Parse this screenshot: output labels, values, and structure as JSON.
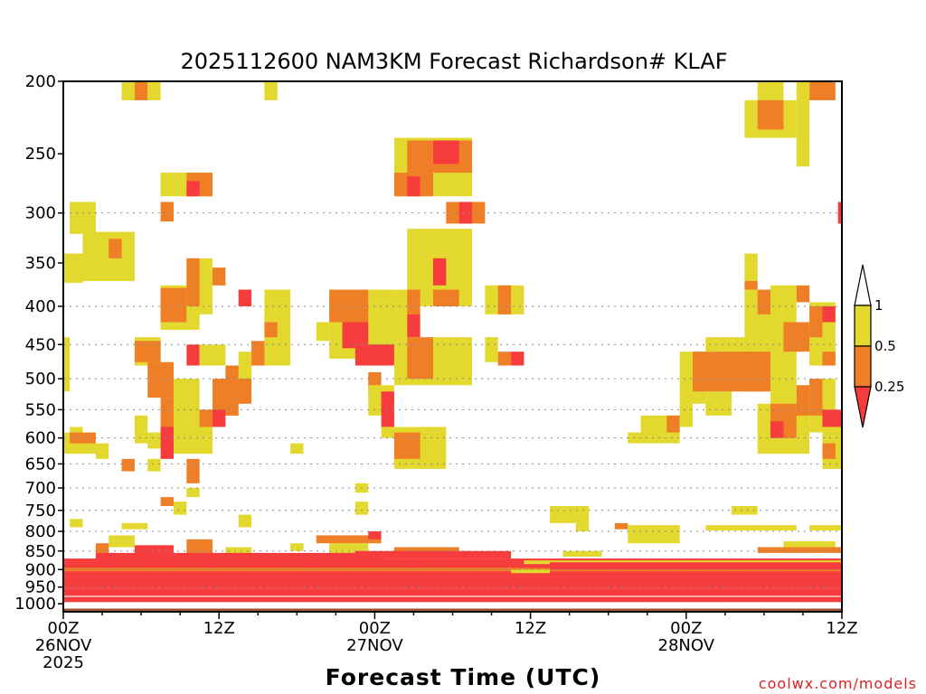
{
  "chart_data": {
    "type": "heatmap",
    "title": "2025112600 NAM3KM Forecast Richardson# KLAF",
    "xlabel": "Forecast Time (UTC)",
    "ylabel": "",
    "y_scale": "log-pressure",
    "ylim": [
      1025,
      200
    ],
    "y_ticks": [
      200,
      250,
      300,
      350,
      400,
      450,
      500,
      550,
      600,
      650,
      700,
      750,
      800,
      850,
      900,
      950,
      1000
    ],
    "y_tick_labels": [
      "200",
      "250",
      "300",
      "350",
      "400",
      "450",
      "500",
      "550",
      "600",
      "650",
      "700",
      "750",
      "800",
      "850",
      "900",
      "950",
      "1000"
    ],
    "xlim": [
      0,
      60
    ],
    "x_ticks": [
      {
        "hour": 0,
        "label": "00Z",
        "sub1": "26NOV",
        "sub2": "2025"
      },
      {
        "hour": 12,
        "label": "12Z",
        "sub1": "",
        "sub2": ""
      },
      {
        "hour": 24,
        "label": "00Z",
        "sub1": "27NOV",
        "sub2": ""
      },
      {
        "hour": 36,
        "label": "12Z",
        "sub1": "",
        "sub2": ""
      },
      {
        "hour": 48,
        "label": "00Z",
        "sub1": "28NOV",
        "sub2": ""
      },
      {
        "hour": 60,
        "label": "12Z",
        "sub1": "",
        "sub2": ""
      }
    ],
    "dotted_gridlines": [
      300,
      400,
      450,
      500,
      550,
      600,
      650,
      700,
      750,
      800,
      850,
      900,
      950
    ],
    "colorbar": {
      "position": "right",
      "levels": [
        {
          "label": "0.25",
          "value": 0.25
        },
        {
          "label": "0.5",
          "value": 0.5
        },
        {
          "label": "1",
          "value": 1
        }
      ],
      "bins": [
        {
          "range": "<0.25",
          "color": "#f63c3c"
        },
        {
          "range": "0.25-0.5",
          "color": "#ee7f26"
        },
        {
          "range": "0.5-1",
          "color": "#e2d82e"
        },
        {
          "range": ">1",
          "color": "#ffffff"
        }
      ]
    },
    "ground_color": "#9c5530",
    "surface_pressure": 1015,
    "regions": [
      {
        "cat": "y",
        "h0": 4.5,
        "h1": 5.5,
        "p0": 200,
        "p1": 212
      },
      {
        "cat": "o",
        "h0": 5.5,
        "h1": 6.5,
        "p0": 200,
        "p1": 212
      },
      {
        "cat": "y",
        "h0": 6.5,
        "h1": 7.5,
        "p0": 200,
        "p1": 212
      },
      {
        "cat": "y",
        "h0": 15.5,
        "h1": 16.5,
        "p0": 200,
        "p1": 212
      },
      {
        "cat": "y",
        "h0": 53.5,
        "h1": 55.5,
        "p0": 200,
        "p1": 212
      },
      {
        "cat": "y",
        "h0": 56.5,
        "h1": 57.5,
        "p0": 200,
        "p1": 260
      },
      {
        "cat": "o",
        "h0": 57.5,
        "h1": 59.5,
        "p0": 200,
        "p1": 212
      },
      {
        "cat": "y",
        "h0": 52.5,
        "h1": 56.5,
        "p0": 212,
        "p1": 238
      },
      {
        "cat": "o",
        "h0": 53.5,
        "h1": 55.5,
        "p0": 212,
        "p1": 232
      },
      {
        "cat": "y",
        "h0": 7.5,
        "h1": 11.5,
        "p0": 265,
        "p1": 285
      },
      {
        "cat": "o",
        "h0": 9.5,
        "h1": 11.5,
        "p0": 265,
        "p1": 285
      },
      {
        "cat": "r",
        "h0": 9.5,
        "h1": 10.5,
        "p0": 272,
        "p1": 285
      },
      {
        "cat": "o",
        "h0": 7.5,
        "h1": 8.5,
        "p0": 290,
        "p1": 308
      },
      {
        "cat": "y",
        "h0": 0.5,
        "h1": 2.5,
        "p0": 290,
        "p1": 320
      },
      {
        "cat": "y",
        "h0": 1.5,
        "h1": 5.5,
        "p0": 318,
        "p1": 370
      },
      {
        "cat": "o",
        "h0": 3.5,
        "h1": 4.5,
        "p0": 325,
        "p1": 345
      },
      {
        "cat": "y",
        "h0": -0.1,
        "h1": 1.5,
        "p0": 340,
        "p1": 372
      },
      {
        "cat": "y",
        "h0": 25.5,
        "h1": 31.5,
        "p0": 238,
        "p1": 285
      },
      {
        "cat": "o",
        "h0": 26.5,
        "h1": 31.5,
        "p0": 240,
        "p1": 265
      },
      {
        "cat": "r",
        "h0": 28.5,
        "h1": 30.5,
        "p0": 240,
        "p1": 258
      },
      {
        "cat": "o",
        "h0": 25.5,
        "h1": 28.5,
        "p0": 265,
        "p1": 285
      },
      {
        "cat": "r",
        "h0": 26.5,
        "h1": 27.5,
        "p0": 268,
        "p1": 285
      },
      {
        "cat": "o",
        "h0": 29.5,
        "h1": 32.5,
        "p0": 290,
        "p1": 310
      },
      {
        "cat": "r",
        "h0": 30.5,
        "h1": 31.5,
        "p0": 290,
        "p1": 310
      },
      {
        "cat": "y",
        "h0": 26.5,
        "h1": 31.5,
        "p0": 315,
        "p1": 400
      },
      {
        "cat": "r",
        "h0": 28.5,
        "h1": 29.5,
        "p0": 345,
        "p1": 375
      },
      {
        "cat": "o",
        "h0": 28.5,
        "h1": 30.5,
        "p0": 380,
        "p1": 400
      },
      {
        "cat": "y",
        "h0": 32.5,
        "h1": 35.5,
        "p0": 375,
        "p1": 410
      },
      {
        "cat": "o",
        "h0": 33.5,
        "h1": 34.5,
        "p0": 375,
        "p1": 410
      },
      {
        "cat": "y",
        "h0": 7.5,
        "h1": 10.5,
        "p0": 375,
        "p1": 430
      },
      {
        "cat": "o",
        "h0": 7.5,
        "h1": 9.5,
        "p0": 378,
        "p1": 420
      },
      {
        "cat": "y",
        "h0": 9.5,
        "h1": 11.5,
        "p0": 345,
        "p1": 410
      },
      {
        "cat": "o",
        "h0": 9.5,
        "h1": 10.5,
        "p0": 345,
        "p1": 400
      },
      {
        "cat": "o",
        "h0": 11.5,
        "h1": 12.5,
        "p0": 355,
        "p1": 375
      },
      {
        "cat": "r",
        "h0": 13.5,
        "h1": 14.5,
        "p0": 380,
        "p1": 400
      },
      {
        "cat": "y",
        "h0": 15.5,
        "h1": 17.5,
        "p0": 380,
        "p1": 480
      },
      {
        "cat": "o",
        "h0": 15.5,
        "h1": 16.5,
        "p0": 420,
        "p1": 440
      },
      {
        "cat": "o",
        "h0": 14.5,
        "h1": 15.5,
        "p0": 445,
        "p1": 480
      },
      {
        "cat": "y",
        "h0": 19.5,
        "h1": 20.5,
        "p0": 420,
        "p1": 445
      },
      {
        "cat": "y",
        "h0": 20.5,
        "h1": 25.5,
        "p0": 380,
        "p1": 470
      },
      {
        "cat": "o",
        "h0": 20.5,
        "h1": 23.5,
        "p0": 380,
        "p1": 420
      },
      {
        "cat": "r",
        "h0": 21.5,
        "h1": 23.5,
        "p0": 420,
        "p1": 455
      },
      {
        "cat": "r",
        "h0": 22.5,
        "h1": 25.5,
        "p0": 450,
        "p1": 480
      },
      {
        "cat": "y",
        "h0": 25.5,
        "h1": 27.5,
        "p0": 380,
        "p1": 440
      },
      {
        "cat": "o",
        "h0": 26.5,
        "h1": 27.5,
        "p0": 380,
        "p1": 410
      },
      {
        "cat": "r",
        "h0": 26.5,
        "h1": 27.5,
        "p0": 410,
        "p1": 440
      },
      {
        "cat": "y",
        "h0": 25.5,
        "h1": 31.5,
        "p0": 440,
        "p1": 510
      },
      {
        "cat": "o",
        "h0": 26.5,
        "h1": 28.5,
        "p0": 440,
        "p1": 500
      },
      {
        "cat": "o",
        "h0": 23.5,
        "h1": 24.5,
        "p0": 490,
        "p1": 520
      },
      {
        "cat": "y",
        "h0": 23.5,
        "h1": 25.5,
        "p0": 510,
        "p1": 560
      },
      {
        "cat": "r",
        "h0": 24.5,
        "h1": 25.5,
        "p0": 520,
        "p1": 580
      },
      {
        "cat": "y",
        "h0": 24.5,
        "h1": 25.5,
        "p0": 580,
        "p1": 600
      },
      {
        "cat": "y",
        "h0": 25.5,
        "h1": 29.5,
        "p0": 580,
        "p1": 660
      },
      {
        "cat": "o",
        "h0": 25.5,
        "h1": 27.5,
        "p0": 590,
        "p1": 640
      },
      {
        "cat": "y",
        "h0": 32.5,
        "h1": 33.5,
        "p0": 440,
        "p1": 475
      },
      {
        "cat": "o",
        "h0": 33.5,
        "h1": 34.5,
        "p0": 460,
        "p1": 480
      },
      {
        "cat": "r",
        "h0": 34.5,
        "h1": 35.5,
        "p0": 460,
        "p1": 480
      },
      {
        "cat": "y",
        "h0": 5.5,
        "h1": 7.5,
        "p0": 440,
        "p1": 480
      },
      {
        "cat": "o",
        "h0": 5.5,
        "h1": 7.5,
        "p0": 445,
        "p1": 475
      },
      {
        "cat": "o",
        "h0": 6.5,
        "h1": 8.5,
        "p0": 475,
        "p1": 530
      },
      {
        "cat": "o",
        "h0": 7.5,
        "h1": 8.5,
        "p0": 530,
        "p1": 620
      },
      {
        "cat": "r",
        "h0": 7.5,
        "h1": 8.5,
        "p0": 580,
        "p1": 610
      },
      {
        "cat": "y",
        "h0": 5.5,
        "h1": 6.5,
        "p0": 560,
        "p1": 610
      },
      {
        "cat": "y",
        "h0": 6.5,
        "h1": 7.5,
        "p0": 590,
        "p1": 620
      },
      {
        "cat": "y",
        "h0": 8.5,
        "h1": 10.5,
        "p0": 500,
        "p1": 600
      },
      {
        "cat": "r",
        "h0": 7.5,
        "h1": 8.5,
        "p0": 610,
        "p1": 640
      },
      {
        "cat": "y",
        "h0": 8.5,
        "h1": 11.5,
        "p0": 600,
        "p1": 630
      },
      {
        "cat": "r",
        "h0": 9.5,
        "h1": 10.5,
        "p0": 450,
        "p1": 480
      },
      {
        "cat": "y",
        "h0": 10.5,
        "h1": 12.5,
        "p0": 450,
        "p1": 480
      },
      {
        "cat": "y",
        "h0": 9.5,
        "h1": 11.5,
        "p0": 550,
        "p1": 600
      },
      {
        "cat": "o",
        "h0": 10.5,
        "h1": 11.5,
        "p0": 550,
        "p1": 580
      },
      {
        "cat": "y",
        "h0": 11.5,
        "h1": 13.5,
        "p0": 520,
        "p1": 560
      },
      {
        "cat": "o",
        "h0": 11.5,
        "h1": 13.5,
        "p0": 500,
        "p1": 560
      },
      {
        "cat": "r",
        "h0": 11.5,
        "h1": 12.5,
        "p0": 550,
        "p1": 580
      },
      {
        "cat": "o",
        "h0": 12.5,
        "h1": 14.5,
        "p0": 480,
        "p1": 540
      },
      {
        "cat": "y",
        "h0": 13.5,
        "h1": 14.5,
        "p0": 460,
        "p1": 500
      },
      {
        "cat": "o",
        "h0": 9.5,
        "h1": 10.5,
        "p0": 640,
        "p1": 690
      },
      {
        "cat": "y",
        "h0": 8.5,
        "h1": 9.5,
        "p0": 730,
        "p1": 760
      },
      {
        "cat": "y",
        "h0": 9.5,
        "h1": 10.5,
        "p0": 700,
        "p1": 720
      },
      {
        "cat": "y",
        "h0": -0.1,
        "h1": 0.5,
        "p0": 440,
        "p1": 520
      },
      {
        "cat": "y",
        "h0": 0.5,
        "h1": 1.5,
        "p0": 580,
        "p1": 610
      },
      {
        "cat": "y",
        "h0": -0.1,
        "h1": 2.5,
        "p0": 590,
        "p1": 630
      },
      {
        "cat": "o",
        "h0": 0.5,
        "h1": 2.5,
        "p0": 590,
        "p1": 610
      },
      {
        "cat": "y",
        "h0": 2.5,
        "h1": 3.5,
        "p0": 610,
        "p1": 640
      },
      {
        "cat": "o",
        "h0": 4.5,
        "h1": 5.5,
        "p0": 640,
        "p1": 665
      },
      {
        "cat": "y",
        "h0": 6.5,
        "h1": 7.5,
        "p0": 640,
        "p1": 665
      },
      {
        "cat": "y",
        "h0": 17.5,
        "h1": 18.5,
        "p0": 610,
        "p1": 630
      },
      {
        "cat": "y",
        "h0": 22.5,
        "h1": 23.5,
        "p0": 690,
        "p1": 710
      },
      {
        "cat": "y",
        "h0": 22.5,
        "h1": 23.5,
        "p0": 730,
        "p1": 760
      },
      {
        "cat": "r",
        "h0": 59.7,
        "h1": 60,
        "p0": 290,
        "p1": 310
      },
      {
        "cat": "y",
        "h0": 52.5,
        "h1": 53.5,
        "p0": 340,
        "p1": 370
      },
      {
        "cat": "o",
        "h0": 52.5,
        "h1": 53.5,
        "p0": 370,
        "p1": 380
      },
      {
        "cat": "y",
        "h0": 52.5,
        "h1": 54.5,
        "p0": 380,
        "p1": 520
      },
      {
        "cat": "o",
        "h0": 53.5,
        "h1": 54.5,
        "p0": 380,
        "p1": 410
      },
      {
        "cat": "y",
        "h0": 54.5,
        "h1": 56.5,
        "p0": 375,
        "p1": 560
      },
      {
        "cat": "o",
        "h0": 56.5,
        "h1": 57.5,
        "p0": 375,
        "p1": 395
      },
      {
        "cat": "y",
        "h0": 57.5,
        "h1": 59.5,
        "p0": 395,
        "p1": 480
      },
      {
        "cat": "o",
        "h0": 57.5,
        "h1": 58.5,
        "p0": 400,
        "p1": 440
      },
      {
        "cat": "o",
        "h0": 55.5,
        "h1": 57.5,
        "p0": 420,
        "p1": 460
      },
      {
        "cat": "r",
        "h0": 58.5,
        "h1": 59.5,
        "p0": 400,
        "p1": 420
      },
      {
        "cat": "o",
        "h0": 58.5,
        "h1": 59.5,
        "p0": 460,
        "p1": 480
      },
      {
        "cat": "y",
        "h0": 49.5,
        "h1": 53.5,
        "p0": 440,
        "p1": 460
      },
      {
        "cat": "y",
        "h0": 47.5,
        "h1": 49.5,
        "p0": 460,
        "p1": 540
      },
      {
        "cat": "o",
        "h0": 48.5,
        "h1": 54.5,
        "p0": 460,
        "p1": 520
      },
      {
        "cat": "o",
        "h0": 50.5,
        "h1": 53.5,
        "p0": 460,
        "p1": 500
      },
      {
        "cat": "y",
        "h0": 49.5,
        "h1": 51.5,
        "p0": 520,
        "p1": 560
      },
      {
        "cat": "y",
        "h0": 44.5,
        "h1": 47.5,
        "p0": 560,
        "p1": 610
      },
      {
        "cat": "o",
        "h0": 46.5,
        "h1": 47.5,
        "p0": 560,
        "p1": 590
      },
      {
        "cat": "y",
        "h0": 43.5,
        "h1": 44.5,
        "p0": 590,
        "p1": 610
      },
      {
        "cat": "y",
        "h0": 47.5,
        "h1": 48.5,
        "p0": 540,
        "p1": 580
      },
      {
        "cat": "y",
        "h0": 53.5,
        "h1": 57.5,
        "p0": 540,
        "p1": 630
      },
      {
        "cat": "o",
        "h0": 54.5,
        "h1": 56.5,
        "p0": 540,
        "p1": 600
      },
      {
        "cat": "r",
        "h0": 54.5,
        "h1": 55.5,
        "p0": 570,
        "p1": 600
      },
      {
        "cat": "o",
        "h0": 56.5,
        "h1": 57.5,
        "p0": 510,
        "p1": 560
      },
      {
        "cat": "y",
        "h0": 57.5,
        "h1": 59.5,
        "p0": 500,
        "p1": 590
      },
      {
        "cat": "o",
        "h0": 57.5,
        "h1": 58.5,
        "p0": 500,
        "p1": 560
      },
      {
        "cat": "r",
        "h0": 58.5,
        "h1": 60,
        "p0": 550,
        "p1": 580
      },
      {
        "cat": "y",
        "h0": 58.5,
        "h1": 60,
        "p0": 580,
        "p1": 660
      },
      {
        "cat": "o",
        "h0": 58.5,
        "h1": 59.5,
        "p0": 610,
        "p1": 640
      },
      {
        "cat": "y",
        "h0": 37.5,
        "h1": 40.5,
        "p0": 740,
        "p1": 780
      },
      {
        "cat": "o",
        "h0": 42.5,
        "h1": 43.5,
        "p0": 780,
        "p1": 795
      },
      {
        "cat": "y",
        "h0": 43.5,
        "h1": 47.5,
        "p0": 785,
        "p1": 830
      },
      {
        "cat": "y",
        "h0": 39.5,
        "h1": 40.5,
        "p0": 780,
        "p1": 800
      },
      {
        "cat": "y",
        "h0": 51.5,
        "h1": 53.5,
        "p0": 740,
        "p1": 760
      },
      {
        "cat": "y",
        "h0": 49.5,
        "h1": 56.5,
        "p0": 785,
        "p1": 798
      },
      {
        "cat": "y",
        "h0": 57.5,
        "h1": 60,
        "p0": 785,
        "p1": 798
      },
      {
        "cat": "y",
        "h0": 0.5,
        "h1": 1.5,
        "p0": 770,
        "p1": 790
      },
      {
        "cat": "y",
        "h0": 4.5,
        "h1": 6.5,
        "p0": 780,
        "p1": 795
      },
      {
        "cat": "y",
        "h0": 13.5,
        "h1": 14.5,
        "p0": 760,
        "p1": 790
      },
      {
        "cat": "o",
        "h0": 7.5,
        "h1": 8.5,
        "p0": 720,
        "p1": 740
      },
      {
        "cat": "o",
        "h0": 2.5,
        "h1": 3.5,
        "p0": 830,
        "p1": 860
      },
      {
        "cat": "y",
        "h0": 3.5,
        "h1": 5.5,
        "p0": 810,
        "p1": 840
      },
      {
        "cat": "r",
        "h0": 5.5,
        "h1": 8.5,
        "p0": 835,
        "p1": 860
      },
      {
        "cat": "o",
        "h0": 9.5,
        "h1": 11.5,
        "p0": 820,
        "p1": 860
      },
      {
        "cat": "y",
        "h0": 12.5,
        "h1": 14.5,
        "p0": 840,
        "p1": 860
      },
      {
        "cat": "y",
        "h0": 17.5,
        "h1": 18.5,
        "p0": 830,
        "p1": 850
      },
      {
        "cat": "o",
        "h0": 19.5,
        "h1": 24.5,
        "p0": 810,
        "p1": 830
      },
      {
        "cat": "r",
        "h0": 23.5,
        "h1": 24.5,
        "p0": 800,
        "p1": 820
      },
      {
        "cat": "y",
        "h0": 20.5,
        "h1": 23.5,
        "p0": 830,
        "p1": 860
      },
      {
        "cat": "o",
        "h0": 25.5,
        "h1": 30.5,
        "p0": 840,
        "p1": 860
      },
      {
        "cat": "r",
        "h0": 22.5,
        "h1": 34.5,
        "p0": 850,
        "p1": 870
      },
      {
        "cat": "r",
        "h0": 0,
        "h1": 60,
        "p0": 870,
        "p1": 955
      },
      {
        "cat": "r",
        "h0": 2.5,
        "h1": 24.5,
        "p0": 855,
        "p1": 880
      },
      {
        "cat": "o",
        "h0": 0,
        "h1": 60,
        "p0": 895,
        "p1": 905
      },
      {
        "cat": "y",
        "h0": 35.5,
        "h1": 60,
        "p0": 875,
        "p1": 885
      },
      {
        "cat": "r",
        "h0": 37.5,
        "h1": 60,
        "p0": 880,
        "p1": 900
      },
      {
        "cat": "o",
        "h0": 53.5,
        "h1": 60,
        "p0": 840,
        "p1": 855
      },
      {
        "cat": "y",
        "h0": 55.5,
        "h1": 59.5,
        "p0": 825,
        "p1": 840
      },
      {
        "cat": "r",
        "h0": 0,
        "h1": 60,
        "p0": 955,
        "p1": 995
      },
      {
        "cat": "y",
        "h0": 38.5,
        "h1": 41.5,
        "p0": 850,
        "p1": 865
      },
      {
        "cat": "w",
        "h0": 0,
        "h1": 60,
        "p0": 976,
        "p1": 979
      },
      {
        "cat": "y",
        "h0": 34.5,
        "h1": 37.5,
        "p0": 900,
        "p1": 910
      }
    ]
  },
  "credit": "coolwx.com/models"
}
